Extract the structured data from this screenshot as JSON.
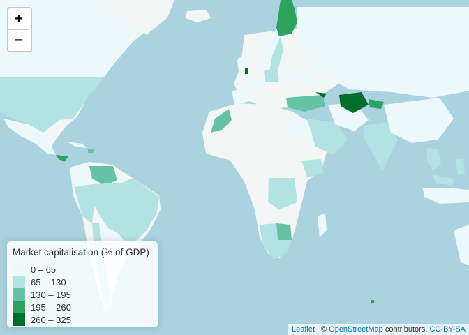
{
  "zoom": {
    "in_label": "+",
    "out_label": "−"
  },
  "legend": {
    "title": "Market capitalisation (% of GDP)",
    "items": [
      {
        "label": "0 – 65",
        "color": "#edf8fb"
      },
      {
        "label": "65 – 130",
        "color": "#b2e2e2"
      },
      {
        "label": "130 – 195",
        "color": "#66c2a4"
      },
      {
        "label": "195 – 260",
        "color": "#2ca25f"
      },
      {
        "label": "260 – 325",
        "color": "#006d2c"
      }
    ]
  },
  "attribution": {
    "leaflet": "Leaflet",
    "sep": " | © ",
    "osm": "OpenStreetMap",
    "contrib": " contributors, ",
    "license": "CC-BY-SA"
  },
  "colors": {
    "ocean": "#aad3df",
    "land": "#f2f7f5",
    "no_data": "#dfeeec"
  }
}
